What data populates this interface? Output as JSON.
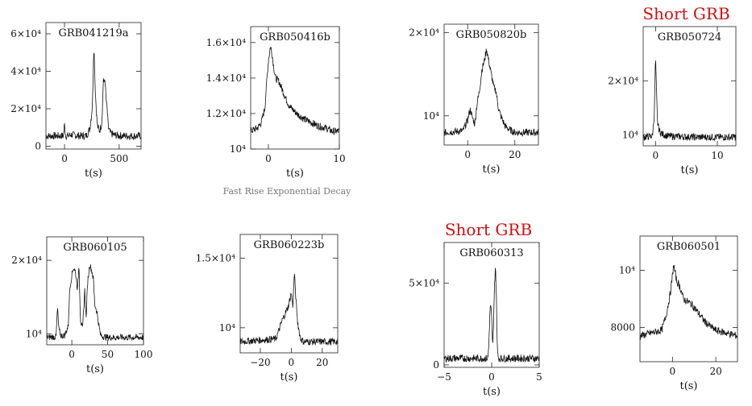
{
  "chart_data": [
    {
      "type": "line",
      "title": "GRB041219a",
      "xlabel": "t(s)",
      "xlim": [
        -170,
        700
      ],
      "ylim": [
        -1500,
        66000
      ],
      "xticks": [
        {
          "v": 0,
          "label": "0"
        },
        {
          "v": 500,
          "label": "500"
        }
      ],
      "yticks": [
        {
          "v": 0,
          "label": "0"
        },
        {
          "v": 20000,
          "label": "2×10⁴"
        },
        {
          "v": 40000,
          "label": "4×10⁴"
        },
        {
          "v": 60000,
          "label": "6×10⁴"
        }
      ],
      "series": [
        {
          "x": [
            -170,
            -10,
            0,
            10,
            40,
            60,
            100,
            150,
            200,
            230,
            250,
            260,
            265,
            270,
            275,
            280,
            290,
            300,
            320,
            340,
            350,
            355,
            360,
            370,
            380,
            390,
            400,
            420,
            450,
            500,
            600,
            700
          ],
          "y": [
            5500,
            5500,
            12000,
            5500,
            5600,
            6200,
            5800,
            5500,
            5600,
            9000,
            18000,
            30000,
            48000,
            53000,
            42000,
            32000,
            20000,
            11000,
            8000,
            12000,
            25000,
            37000,
            33000,
            36000,
            25000,
            20000,
            10000,
            7000,
            6000,
            5600,
            5500,
            5500
          ]
        }
      ]
    },
    {
      "type": "line",
      "title": "GRB050416b",
      "xlabel": "t(s)",
      "caption": "Fast Rise Exponential Decay",
      "xlim": [
        -2.5,
        10
      ],
      "ylim": [
        10000,
        16900
      ],
      "xticks": [
        {
          "v": 0,
          "label": "0"
        },
        {
          "v": 10,
          "label": "10"
        }
      ],
      "yticks": [
        {
          "v": 10000,
          "label": "10⁴"
        },
        {
          "v": 12000,
          "label": "1.2×10⁴"
        },
        {
          "v": 14000,
          "label": "1.4×10⁴"
        },
        {
          "v": 16000,
          "label": "1.6×10⁴"
        }
      ],
      "series": [
        {
          "x": [
            -2.5,
            -1.5,
            -1,
            -0.5,
            -0.2,
            0,
            0.3,
            0.5,
            0.8,
            1,
            1.5,
            2,
            2.5,
            3,
            4,
            5,
            6,
            7,
            8,
            9,
            10
          ],
          "y": [
            11000,
            11200,
            11500,
            12300,
            14000,
            15000,
            15800,
            15400,
            14500,
            14000,
            13800,
            13300,
            12800,
            12400,
            12000,
            11700,
            11500,
            11300,
            11200,
            11000,
            11000
          ]
        }
      ]
    },
    {
      "type": "line",
      "title": "GRB050820b",
      "xlabel": "t(s)",
      "xlim": [
        -10,
        30
      ],
      "ylim": [
        6500,
        21000
      ],
      "xticks": [
        {
          "v": 0,
          "label": "0"
        },
        {
          "v": 20,
          "label": "20"
        }
      ],
      "yticks": [
        {
          "v": 10000,
          "label": "10⁴"
        },
        {
          "v": 20000,
          "label": "2×10⁴"
        }
      ],
      "series": [
        {
          "x": [
            -10,
            -2,
            0,
            1,
            2,
            3,
            4,
            5,
            6,
            7,
            8,
            9,
            10,
            11,
            12,
            13,
            14,
            16,
            18,
            20,
            30
          ],
          "y": [
            8000,
            8200,
            9500,
            10800,
            9800,
            9000,
            11500,
            13000,
            15500,
            16500,
            18000,
            16500,
            15000,
            13500,
            13000,
            11000,
            10000,
            8700,
            8300,
            8000,
            8000
          ]
        }
      ]
    },
    {
      "type": "line",
      "title": "GRB050724",
      "xlabel": "t(s)",
      "annotation": "Short GRB",
      "xlim": [
        -2,
        13
      ],
      "ylim": [
        8000,
        30000
      ],
      "xticks": [
        {
          "v": 0,
          "label": "0"
        },
        {
          "v": 10,
          "label": "10"
        }
      ],
      "yticks": [
        {
          "v": 10000,
          "label": "10⁴"
        },
        {
          "v": 20000,
          "label": "2×10⁴"
        }
      ],
      "series": [
        {
          "x": [
            -2,
            -0.5,
            -0.2,
            0,
            0.1,
            0.3,
            0.6,
            1,
            2,
            4,
            6,
            8,
            10,
            13
          ],
          "y": [
            9600,
            9800,
            14000,
            24500,
            20000,
            12500,
            10800,
            10200,
            9800,
            9700,
            9600,
            9600,
            9600,
            9600
          ]
        }
      ]
    },
    {
      "type": "line",
      "title": "GRB060105",
      "xlabel": "t(s)",
      "xlim": [
        -35,
        100
      ],
      "ylim": [
        8500,
        23200
      ],
      "xticks": [
        {
          "v": 0,
          "label": "0"
        },
        {
          "v": 50,
          "label": "50"
        },
        {
          "v": 100,
          "label": "100"
        }
      ],
      "yticks": [
        {
          "v": 10000,
          "label": "10⁴"
        },
        {
          "v": 20000,
          "label": "2×10⁴"
        }
      ],
      "series": [
        {
          "x": [
            -35,
            -22,
            -20,
            -18,
            -15,
            -10,
            -5,
            -3,
            0,
            2,
            5,
            8,
            10,
            12,
            15,
            18,
            20,
            22,
            25,
            28,
            30,
            32,
            35,
            38,
            40,
            45,
            50,
            60,
            100
          ],
          "y": [
            9500,
            9600,
            13500,
            10500,
            9700,
            9800,
            11000,
            16000,
            18000,
            19000,
            18500,
            16000,
            19500,
            12000,
            10500,
            16000,
            12000,
            17000,
            19500,
            18500,
            17500,
            14000,
            13000,
            11000,
            9800,
            9600,
            9500,
            9500,
            9500
          ]
        }
      ]
    },
    {
      "type": "line",
      "title": "GRB060223b",
      "xlabel": "t(s)",
      "xlim": [
        -33,
        30
      ],
      "ylim": [
        8200,
        16700
      ],
      "xticks": [
        {
          "v": -20,
          "label": "−20"
        },
        {
          "v": 0,
          "label": "0"
        },
        {
          "v": 20,
          "label": "20"
        }
      ],
      "yticks": [
        {
          "v": 10000,
          "label": "10⁴"
        },
        {
          "v": 15000,
          "label": "1.5×10⁴"
        }
      ],
      "series": [
        {
          "x": [
            -33,
            -10,
            -8,
            -6,
            -4,
            -2,
            0,
            1,
            2,
            3,
            4,
            5,
            6,
            8,
            10,
            30
          ],
          "y": [
            9000,
            9200,
            9800,
            10500,
            11000,
            11500,
            12500,
            11500,
            14000,
            12000,
            10500,
            9800,
            9200,
            9000,
            9000,
            9000
          ]
        }
      ]
    },
    {
      "type": "line",
      "title": "GRB060313",
      "xlabel": "t(s)",
      "annotation": "Short GRB",
      "xlim": [
        -5,
        5
      ],
      "ylim": [
        -1500,
        75000
      ],
      "xticks": [
        {
          "v": -5,
          "label": "−5"
        },
        {
          "v": 0,
          "label": "0"
        },
        {
          "v": 5,
          "label": "5"
        }
      ],
      "yticks": [
        {
          "v": 0,
          "label": "0"
        },
        {
          "v": 50000,
          "label": "5×10⁴"
        }
      ],
      "series": [
        {
          "x": [
            -5,
            -0.4,
            -0.3,
            -0.2,
            -0.1,
            0,
            0.1,
            0.2,
            0.3,
            0.4,
            0.5,
            0.6,
            0.7,
            0.8,
            5
          ],
          "y": [
            4000,
            4000,
            12000,
            30000,
            38000,
            28000,
            10000,
            25000,
            48000,
            62000,
            40000,
            8000,
            4500,
            4000,
            4000
          ]
        }
      ]
    },
    {
      "type": "line",
      "title": "GRB060501",
      "xlabel": "t(s)",
      "xlim": [
        -15,
        30
      ],
      "ylim": [
        6800,
        11200
      ],
      "xticks": [
        {
          "v": 0,
          "label": "0"
        },
        {
          "v": 20,
          "label": "20"
        }
      ],
      "yticks": [
        {
          "v": 8000,
          "label": "8000"
        },
        {
          "v": 10000,
          "label": "10⁴"
        }
      ],
      "series": [
        {
          "x": [
            -15,
            -5,
            -3,
            -1,
            0,
            0.5,
            1,
            2,
            3,
            4,
            5,
            7,
            9,
            11,
            13,
            15,
            18,
            20,
            25,
            30
          ],
          "y": [
            7700,
            7900,
            8400,
            9200,
            9800,
            10200,
            10000,
            9600,
            9500,
            9300,
            9000,
            8900,
            8800,
            8600,
            8400,
            8200,
            8000,
            7900,
            7800,
            7700
          ]
        }
      ]
    }
  ]
}
